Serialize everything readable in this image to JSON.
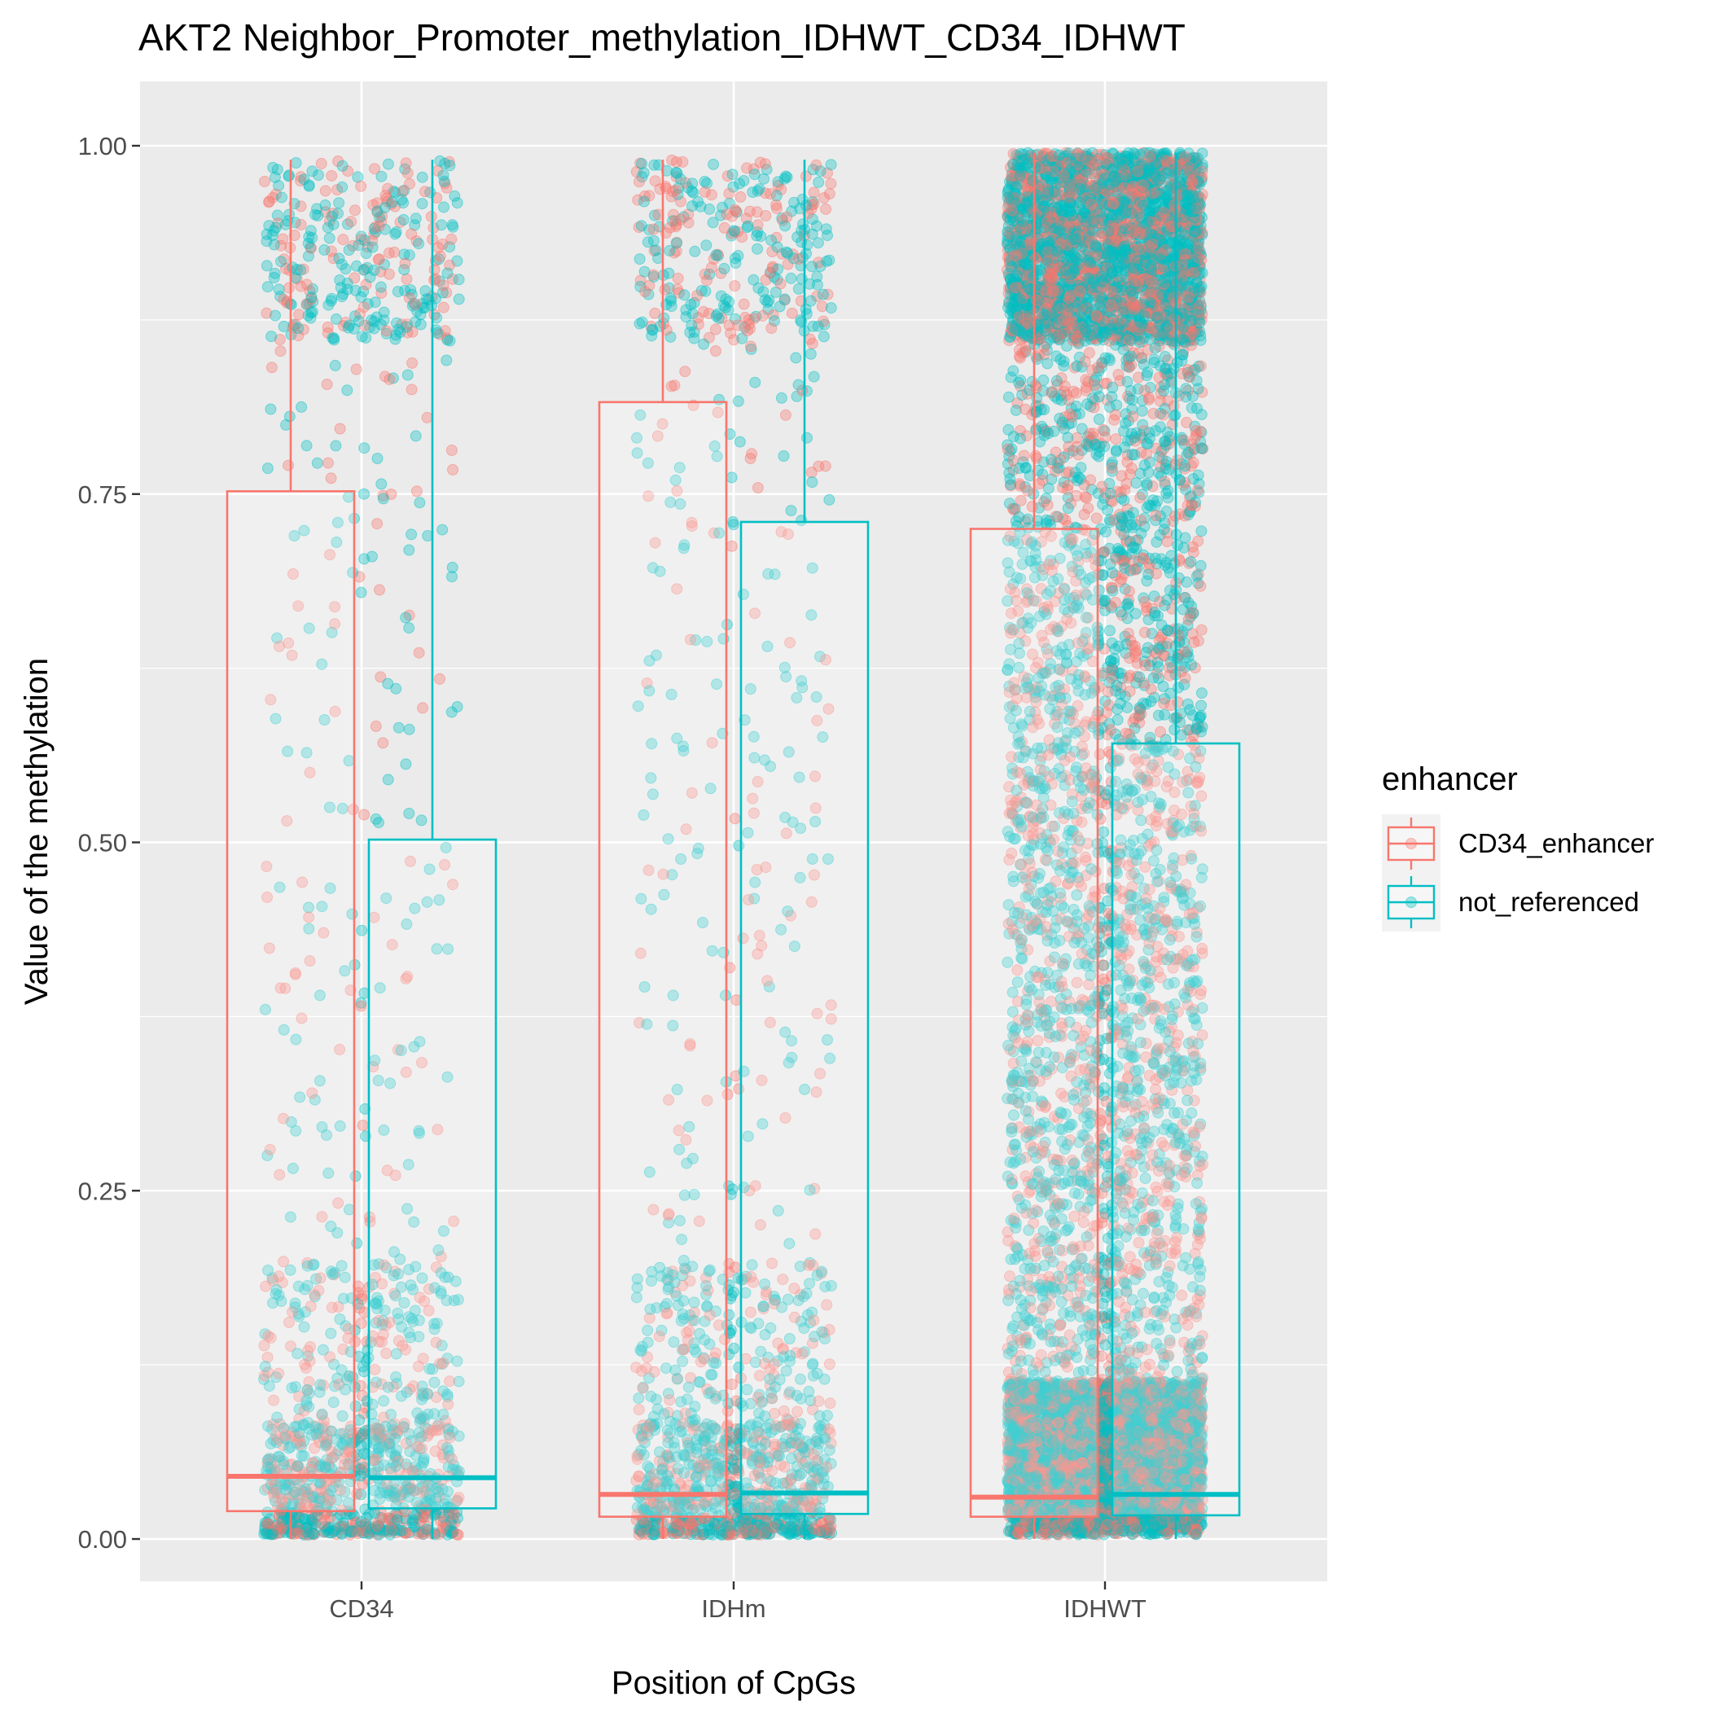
{
  "chart_data": {
    "type": "boxplot_with_jitter",
    "title": "AKT2 Neighbor_Promoter_methylation_IDHWT_CD34_IDHWT",
    "xlabel": "Position of CpGs",
    "ylabel": "Value of the methylation",
    "categories": [
      "CD34",
      "IDHm",
      "IDHWT"
    ],
    "ylim": [
      -0.05,
      1.05
    ],
    "yticks": [
      0.0,
      0.25,
      0.5,
      0.75,
      1.0
    ],
    "ytick_labels": [
      "0.00",
      "0.25",
      "0.50",
      "0.75",
      "1.00"
    ],
    "grid": true,
    "legend": {
      "title": "enhancer",
      "position": "right",
      "entries": [
        "CD34_enhancer",
        "not_referenced"
      ]
    },
    "series": [
      {
        "name": "CD34_enhancer",
        "color": "#F8766D",
        "boxes": [
          {
            "category": "CD34",
            "min": 0.0,
            "q1": 0.02,
            "median": 0.045,
            "q3": 0.752,
            "max": 0.99
          },
          {
            "category": "IDHm",
            "min": 0.0,
            "q1": 0.016,
            "median": 0.032,
            "q3": 0.816,
            "max": 0.99
          },
          {
            "category": "IDHWT",
            "min": 0.0,
            "q1": 0.016,
            "median": 0.03,
            "q3": 0.725,
            "max": 0.995
          }
        ]
      },
      {
        "name": "not_referenced",
        "color": "#00BFC4",
        "boxes": [
          {
            "category": "CD34",
            "min": 0.0,
            "q1": 0.022,
            "median": 0.044,
            "q3": 0.502,
            "max": 0.99
          },
          {
            "category": "IDHm",
            "min": 0.0,
            "q1": 0.018,
            "median": 0.033,
            "q3": 0.73,
            "max": 0.99
          },
          {
            "category": "IDHWT",
            "min": 0.0,
            "q1": 0.017,
            "median": 0.032,
            "q3": 0.571,
            "max": 0.995
          }
        ]
      }
    ],
    "points_note": "jittered points per category and series",
    "point_counts": [
      {
        "category": "CD34",
        "CD34_enhancer": 600,
        "not_referenced": 900
      },
      {
        "category": "IDHm",
        "CD34_enhancer": 600,
        "not_referenced": 1000
      },
      {
        "category": "IDHWT",
        "CD34_enhancer": 4000,
        "not_referenced": 6000
      }
    ]
  }
}
